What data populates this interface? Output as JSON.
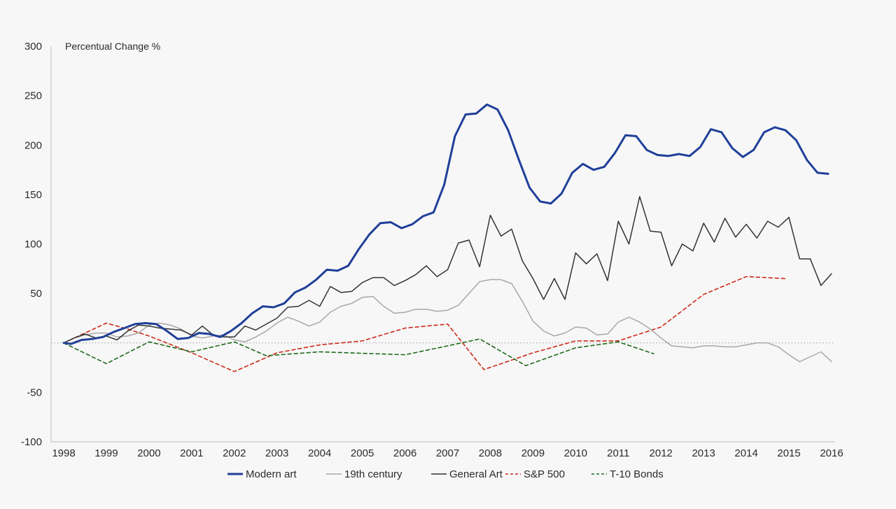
{
  "chart_data": {
    "type": "line",
    "title": "",
    "ylabel": "Percentual Change %",
    "xlabel": "",
    "ylim": [
      -100,
      300
    ],
    "xlim": [
      1998,
      2016
    ],
    "y_ticks": [
      300,
      250,
      200,
      150,
      100,
      50,
      -50,
      -100
    ],
    "y_tick_labels": [
      "300",
      "250",
      "200",
      "150",
      "100",
      "50",
      "-50",
      "-100"
    ],
    "x_ticks": [
      "1998",
      "1999",
      "2000",
      "2001",
      "2002",
      "2003",
      "2004",
      "2005",
      "2006",
      "2007",
      "2008",
      "2009",
      "2010",
      "2011",
      "2012",
      "2013",
      "2014",
      "2015",
      "2016"
    ],
    "zero_line": "dotted",
    "grid": false,
    "legend_position": "bottom",
    "series": [
      {
        "name": "Modern art",
        "color": "#1f3f99",
        "style": "solid-thick",
        "points": [
          [
            1998,
            0
          ],
          [
            1998.17,
            -1
          ],
          [
            1998.42,
            3
          ],
          [
            1998.67,
            4
          ],
          [
            1998.92,
            6
          ],
          [
            1999.17,
            11
          ],
          [
            1999.42,
            15
          ],
          [
            1999.67,
            19
          ],
          [
            1999.92,
            20
          ],
          [
            2000.17,
            19
          ],
          [
            2000.42,
            12
          ],
          [
            2000.67,
            4
          ],
          [
            2000.92,
            5
          ],
          [
            2001.17,
            10
          ],
          [
            2001.42,
            9
          ],
          [
            2001.67,
            6
          ],
          [
            2001.92,
            12
          ],
          [
            2002.17,
            20
          ],
          [
            2002.42,
            30
          ],
          [
            2002.67,
            37
          ],
          [
            2002.92,
            36
          ],
          [
            2003.17,
            40
          ],
          [
            2003.42,
            51
          ],
          [
            2003.67,
            56
          ],
          [
            2003.92,
            64
          ],
          [
            2004.17,
            74
          ],
          [
            2004.42,
            73
          ],
          [
            2004.67,
            78
          ],
          [
            2004.92,
            95
          ],
          [
            2005.17,
            110
          ],
          [
            2005.42,
            121
          ],
          [
            2005.67,
            122
          ],
          [
            2005.92,
            116
          ],
          [
            2006.17,
            120
          ],
          [
            2006.42,
            128
          ],
          [
            2006.67,
            132
          ],
          [
            2006.92,
            160
          ],
          [
            2007.17,
            209
          ],
          [
            2007.42,
            231
          ],
          [
            2007.67,
            232
          ],
          [
            2007.92,
            241
          ],
          [
            2008.17,
            236
          ],
          [
            2008.42,
            215
          ],
          [
            2008.67,
            185
          ],
          [
            2008.92,
            157
          ],
          [
            2009.17,
            143
          ],
          [
            2009.42,
            141
          ],
          [
            2009.67,
            151
          ],
          [
            2009.92,
            172
          ],
          [
            2010.17,
            181
          ],
          [
            2010.42,
            175
          ],
          [
            2010.67,
            178
          ],
          [
            2010.92,
            192
          ],
          [
            2011.17,
            210
          ],
          [
            2011.42,
            209
          ],
          [
            2011.67,
            195
          ],
          [
            2011.92,
            190
          ],
          [
            2012.17,
            189
          ],
          [
            2012.42,
            191
          ],
          [
            2012.67,
            189
          ],
          [
            2012.92,
            198
          ],
          [
            2013.17,
            216
          ],
          [
            2013.42,
            213
          ],
          [
            2013.67,
            197
          ],
          [
            2013.92,
            188
          ],
          [
            2014.17,
            195
          ],
          [
            2014.42,
            213
          ],
          [
            2014.67,
            218
          ],
          [
            2014.92,
            215
          ],
          [
            2015.17,
            205
          ],
          [
            2015.42,
            185
          ],
          [
            2015.67,
            172
          ],
          [
            2015.92,
            171
          ]
        ]
      },
      {
        "name": "19th century",
        "color": "#a8a8a8",
        "style": "solid",
        "points": [
          [
            1998,
            0
          ],
          [
            1998.25,
            5
          ],
          [
            1998.5,
            8
          ],
          [
            1998.75,
            10
          ],
          [
            1999.0,
            10
          ],
          [
            1999.25,
            6
          ],
          [
            1999.5,
            7
          ],
          [
            1999.75,
            10
          ],
          [
            2000.0,
            18
          ],
          [
            2000.25,
            20
          ],
          [
            2000.5,
            18
          ],
          [
            2000.75,
            14
          ],
          [
            2001.0,
            7
          ],
          [
            2001.25,
            5
          ],
          [
            2001.5,
            7
          ],
          [
            2001.75,
            8
          ],
          [
            2002.0,
            3
          ],
          [
            2002.25,
            1
          ],
          [
            2002.5,
            6
          ],
          [
            2002.75,
            12
          ],
          [
            2003.0,
            20
          ],
          [
            2003.25,
            26
          ],
          [
            2003.5,
            22
          ],
          [
            2003.75,
            17
          ],
          [
            2004.0,
            21
          ],
          [
            2004.25,
            31
          ],
          [
            2004.5,
            37
          ],
          [
            2004.75,
            40
          ],
          [
            2005.0,
            46
          ],
          [
            2005.25,
            47
          ],
          [
            2005.5,
            37
          ],
          [
            2005.75,
            30
          ],
          [
            2006.0,
            31
          ],
          [
            2006.25,
            34
          ],
          [
            2006.5,
            34
          ],
          [
            2006.75,
            32
          ],
          [
            2007.0,
            33
          ],
          [
            2007.25,
            38
          ],
          [
            2007.5,
            50
          ],
          [
            2007.75,
            62
          ],
          [
            2008.0,
            64
          ],
          [
            2008.25,
            64
          ],
          [
            2008.5,
            60
          ],
          [
            2008.75,
            42
          ],
          [
            2009.0,
            22
          ],
          [
            2009.25,
            12
          ],
          [
            2009.5,
            7
          ],
          [
            2009.75,
            10
          ],
          [
            2010.0,
            16
          ],
          [
            2010.25,
            15
          ],
          [
            2010.5,
            8
          ],
          [
            2010.75,
            9
          ],
          [
            2011.0,
            21
          ],
          [
            2011.25,
            26
          ],
          [
            2011.5,
            21
          ],
          [
            2011.75,
            14
          ],
          [
            2012.0,
            5
          ],
          [
            2012.25,
            -3
          ],
          [
            2012.5,
            -4
          ],
          [
            2012.75,
            -5
          ],
          [
            2013.0,
            -3
          ],
          [
            2013.25,
            -3
          ],
          [
            2013.5,
            -4
          ],
          [
            2013.75,
            -4
          ],
          [
            2014.0,
            -2
          ],
          [
            2014.25,
            0
          ],
          [
            2014.5,
            0
          ],
          [
            2014.75,
            -4
          ],
          [
            2015.0,
            -12
          ],
          [
            2015.25,
            -19
          ],
          [
            2015.5,
            -14
          ],
          [
            2015.75,
            -9
          ],
          [
            2016.0,
            -19
          ]
        ]
      },
      {
        "name": "General Art",
        "color": "#333333",
        "style": "solid",
        "points": [
          [
            1998,
            0
          ],
          [
            1998.25,
            5
          ],
          [
            1998.5,
            9
          ],
          [
            1998.75,
            5
          ],
          [
            1999.0,
            7
          ],
          [
            1999.25,
            3
          ],
          [
            1999.5,
            12
          ],
          [
            1999.75,
            18
          ],
          [
            2000.0,
            17
          ],
          [
            2000.25,
            15
          ],
          [
            2000.5,
            14
          ],
          [
            2000.75,
            13
          ],
          [
            2001.0,
            8
          ],
          [
            2001.25,
            17
          ],
          [
            2001.5,
            8
          ],
          [
            2001.75,
            6
          ],
          [
            2002.0,
            6
          ],
          [
            2002.25,
            17
          ],
          [
            2002.5,
            13
          ],
          [
            2002.75,
            19
          ],
          [
            2003.0,
            25
          ],
          [
            2003.25,
            36
          ],
          [
            2003.5,
            37
          ],
          [
            2003.75,
            43
          ],
          [
            2004.0,
            37
          ],
          [
            2004.25,
            57
          ],
          [
            2004.5,
            51
          ],
          [
            2004.75,
            52
          ],
          [
            2005.0,
            61
          ],
          [
            2005.25,
            66
          ],
          [
            2005.5,
            66
          ],
          [
            2005.75,
            58
          ],
          [
            2006.0,
            63
          ],
          [
            2006.25,
            69
          ],
          [
            2006.5,
            78
          ],
          [
            2006.75,
            67
          ],
          [
            2007.0,
            74
          ],
          [
            2007.25,
            101
          ],
          [
            2007.5,
            104
          ],
          [
            2007.75,
            77
          ],
          [
            2008.0,
            129
          ],
          [
            2008.25,
            108
          ],
          [
            2008.5,
            115
          ],
          [
            2008.75,
            83
          ],
          [
            2009.0,
            65
          ],
          [
            2009.25,
            44
          ],
          [
            2009.5,
            65
          ],
          [
            2009.75,
            44
          ],
          [
            2010.0,
            91
          ],
          [
            2010.25,
            80
          ],
          [
            2010.5,
            90
          ],
          [
            2010.75,
            63
          ],
          [
            2011.0,
            123
          ],
          [
            2011.25,
            100
          ],
          [
            2011.5,
            148
          ],
          [
            2011.75,
            113
          ],
          [
            2012.0,
            112
          ],
          [
            2012.25,
            78
          ],
          [
            2012.5,
            100
          ],
          [
            2012.75,
            93
          ],
          [
            2013.0,
            121
          ],
          [
            2013.25,
            102
          ],
          [
            2013.5,
            126
          ],
          [
            2013.75,
            107
          ],
          [
            2014.0,
            120
          ],
          [
            2014.25,
            106
          ],
          [
            2014.5,
            123
          ],
          [
            2014.75,
            117
          ],
          [
            2015.0,
            127
          ],
          [
            2015.25,
            85
          ],
          [
            2015.5,
            85
          ],
          [
            2015.75,
            58
          ],
          [
            2016.0,
            70
          ]
        ]
      },
      {
        "name": "S&P 500",
        "color": "#cc2a1a",
        "style": "dashed",
        "points": [
          [
            1998,
            0
          ],
          [
            1998.5,
            10
          ],
          [
            1999.0,
            20
          ],
          [
            1999.5,
            14
          ],
          [
            2000.0,
            7
          ],
          [
            2001.0,
            -10
          ],
          [
            2002.0,
            -29
          ],
          [
            2003.0,
            -10
          ],
          [
            2004.0,
            -2
          ],
          [
            2005.0,
            2
          ],
          [
            2006.0,
            15
          ],
          [
            2007.0,
            19
          ],
          [
            2007.85,
            -27
          ],
          [
            2009.0,
            -10
          ],
          [
            2010.0,
            2
          ],
          [
            2011.0,
            2
          ],
          [
            2012.0,
            16
          ],
          [
            2013.0,
            49
          ],
          [
            2014.0,
            67
          ],
          [
            2014.92,
            65
          ]
        ]
      },
      {
        "name": "T-10 Bonds",
        "color": "#1f6b1a",
        "style": "dashed",
        "points": [
          [
            1998,
            0
          ],
          [
            1999.0,
            -21
          ],
          [
            2000.0,
            1
          ],
          [
            2001.0,
            -9
          ],
          [
            2002.0,
            1
          ],
          [
            2002.75,
            -13
          ],
          [
            2004.0,
            -9
          ],
          [
            2006.0,
            -12
          ],
          [
            2007.0,
            -3
          ],
          [
            2007.75,
            4
          ],
          [
            2008.83,
            -23
          ],
          [
            2010.0,
            -5
          ],
          [
            2011.0,
            1
          ],
          [
            2011.83,
            -11
          ]
        ]
      }
    ]
  }
}
